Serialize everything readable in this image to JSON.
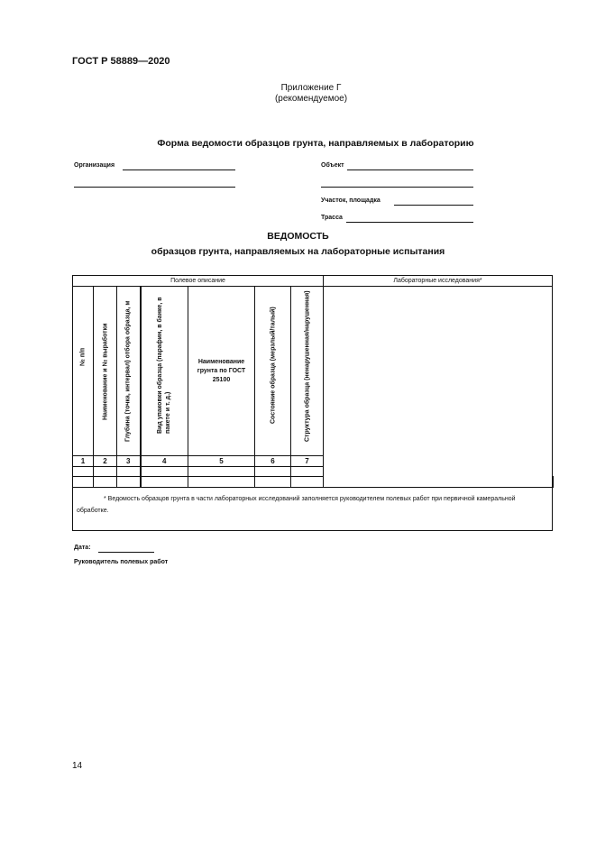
{
  "header": {
    "standard": "ГОСТ Р 58889—2020"
  },
  "appendix": {
    "title": "Приложение Г",
    "subtitle": "(рекомендуемое)"
  },
  "form_title": "Форма ведомости образцов грунта, направляемых в лабораторию",
  "fields": {
    "organization": "Организация",
    "object": "Объект",
    "site": "Участок, площадка",
    "route": "Трасса"
  },
  "document": {
    "title": "ВЕДОМОСТЬ",
    "subtitle": "образцов грунта, направляемых на лабораторные испытания"
  },
  "table": {
    "group_field": "Полевое описание",
    "group_lab": "Лабораторные исследования*",
    "columns": [
      "№ п/п",
      "Наименование и № выработки",
      "Глубина (точка, интервал) отбора образца, м",
      "Вид упаковки образца (парафин, в банке, в пакете и т. д.)",
      "Наименование грунта по ГОСТ 25100",
      "Состояние образца (мерзлый/талый)",
      "Структура образца (ненарушенная/нарушенная)"
    ],
    "numbers": [
      "1",
      "2",
      "3",
      "4",
      "5",
      "6",
      "7"
    ],
    "footnote": "* Ведомость образцов грунта в части лабораторных исследований заполняется руководителем полевых работ при первичной камеральной обработке."
  },
  "signature": {
    "date": "Дата:",
    "head": "Руководитель полевых работ"
  },
  "page_number": "14"
}
